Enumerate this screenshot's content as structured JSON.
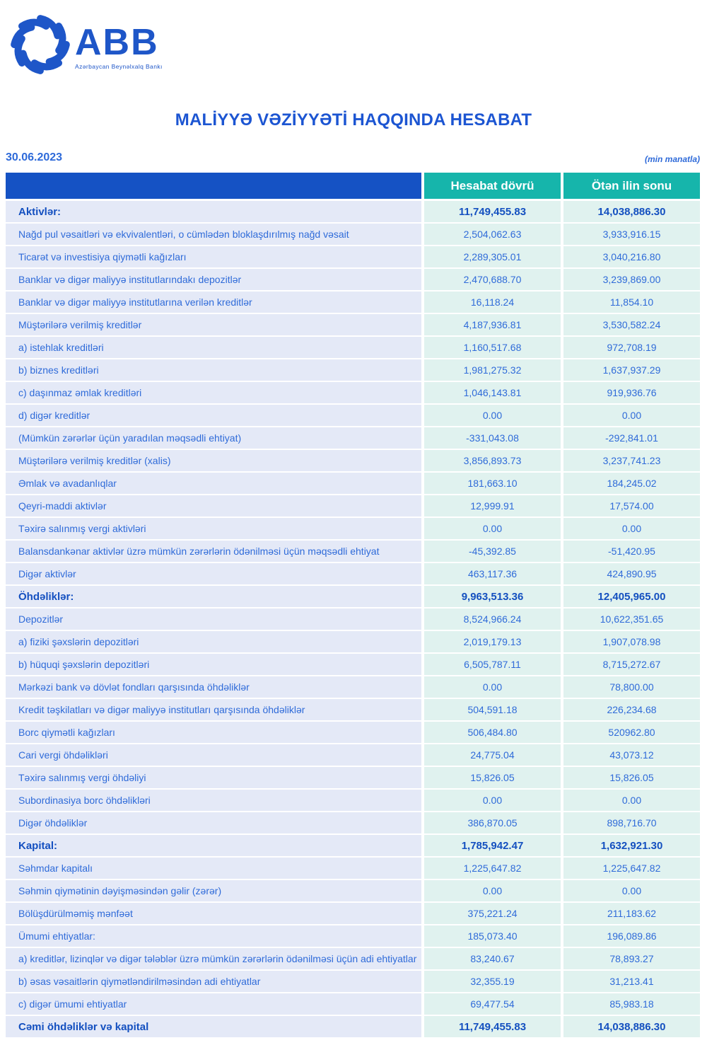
{
  "brand": {
    "name": "ABB",
    "subtitle": "Azərbaycan Beynəlxalq Bankı",
    "logo_icon": "swirl-pinwheel-icon",
    "brand_color": "#1E56C8"
  },
  "title": "MALİYYƏ VƏZİYYƏTİ HAQQINDA HESABAT",
  "date": "30.06.2023",
  "units_note": "(min manatla)",
  "colors": {
    "header_blue": "#1552C4",
    "header_teal": "#16B5AB",
    "label_cell_bg": "#E4E9F7",
    "value_cell_bg": "#E0F2EF",
    "text_blue": "#2F6BD9",
    "bold_text_blue": "#1450C0"
  },
  "table": {
    "col1": "Hesabat dövrü",
    "col2": "Ötən ilin sonu",
    "rows": [
      {
        "label": "Aktivlər:",
        "current": "11,749,455.83",
        "previous": "14,038,886.30",
        "bold": true
      },
      {
        "label": "Nağd pul vəsaitləri və  ekvivalentləri, o cümlədən bloklaşdırılmış nağd vəsait",
        "current": "2,504,062.63",
        "previous": "3,933,916.15",
        "bold": false
      },
      {
        "label": "Ticarət və investisiya qiymətli kağızları",
        "current": "2,289,305.01",
        "previous": "3,040,216.80",
        "bold": false
      },
      {
        "label": "Banklar və digər maliyyə institutlarındakı depozitlər",
        "current": "2,470,688.70",
        "previous": "3,239,869.00",
        "bold": false
      },
      {
        "label": "Banklar və digər maliyyə institutlarına verilən kreditlər",
        "current": "16,118.24",
        "previous": "11,854.10",
        "bold": false
      },
      {
        "label": "Müştərilərə verilmiş kreditlər",
        "current": "4,187,936.81",
        "previous": "3,530,582.24",
        "bold": false
      },
      {
        "label": "a) istehlak kreditləri",
        "current": "1,160,517.68",
        "previous": "972,708.19",
        "bold": false
      },
      {
        "label": "b) biznes kreditləri",
        "current": "1,981,275.32",
        "previous": "1,637,937.29",
        "bold": false
      },
      {
        "label": "c) daşınmaz əmlak kreditləri",
        "current": "1,046,143.81",
        "previous": "919,936.76",
        "bold": false
      },
      {
        "label": "d) digər kreditlər",
        "current": "0.00",
        "previous": "0.00",
        "bold": false
      },
      {
        "label": "(Mümkün zərərlər üçün yaradılan məqsədli ehtiyat)",
        "current": "-331,043.08",
        "previous": "-292,841.01",
        "bold": false
      },
      {
        "label": "Müştərilərə verilmiş kreditlər (xalis)",
        "current": "3,856,893.73",
        "previous": "3,237,741.23",
        "bold": false
      },
      {
        "label": "Əmlak və avadanlıqlar",
        "current": "181,663.10",
        "previous": "184,245.02",
        "bold": false
      },
      {
        "label": "Qeyri-maddi aktivlər",
        "current": "12,999.91",
        "previous": "17,574.00",
        "bold": false
      },
      {
        "label": "Təxirə salınmış vergi aktivləri",
        "current": "0.00",
        "previous": "0.00",
        "bold": false
      },
      {
        "label": "Balansdankənar aktivlər üzrə mümkün zərərlərin ödənilməsi üçün məqsədli ehtiyat",
        "current": "-45,392.85",
        "previous": "-51,420.95",
        "bold": false
      },
      {
        "label": "Digər aktivlər",
        "current": "463,117.36",
        "previous": "424,890.95",
        "bold": false
      },
      {
        "label": "Öhdəliklər:",
        "current": "9,963,513.36",
        "previous": "12,405,965.00",
        "bold": true
      },
      {
        "label": "Depozitlər",
        "current": "8,524,966.24",
        "previous": "10,622,351.65",
        "bold": false
      },
      {
        "label": "a) fiziki şəxslərin depozitləri",
        "current": "2,019,179.13",
        "previous": "1,907,078.98",
        "bold": false
      },
      {
        "label": "b) hüquqi şəxslərin depozitləri",
        "current": "6,505,787.11",
        "previous": "8,715,272.67",
        "bold": false
      },
      {
        "label": "Mərkəzi bank və dövlət fondları qarşısında öhdəliklər",
        "current": "0.00",
        "previous": "78,800.00",
        "bold": false
      },
      {
        "label": "Kredit təşkilatları və digər maliyyə institutları qarşısında öhdəliklər",
        "current": "504,591.18",
        "previous": "226,234.68",
        "bold": false
      },
      {
        "label": "Borc qiymətli kağızları",
        "current": "506,484.80",
        "previous": "520962.80",
        "bold": false
      },
      {
        "label": "Cari vergi öhdəlikləri",
        "current": "24,775.04",
        "previous": "43,073.12",
        "bold": false
      },
      {
        "label": "Təxirə salınmış vergi öhdəliyi",
        "current": "15,826.05",
        "previous": "15,826.05",
        "bold": false
      },
      {
        "label": "Subordinasiya borc öhdəlikləri",
        "current": "0.00",
        "previous": "0.00",
        "bold": false
      },
      {
        "label": "Digər öhdəliklər",
        "current": "386,870.05",
        "previous": "898,716.70",
        "bold": false
      },
      {
        "label": "Kapital:",
        "current": "1,785,942.47",
        "previous": "1,632,921.30",
        "bold": true
      },
      {
        "label": "Səhmdar kapitalı",
        "current": "1,225,647.82",
        "previous": "1,225,647.82",
        "bold": false
      },
      {
        "label": "Səhmin qiymətinin dəyişməsindən gəlir (zərər)",
        "current": "0.00",
        "previous": "0.00",
        "bold": false
      },
      {
        "label": "Bölüşdürülməmiş mənfəət",
        "current": "375,221.24",
        "previous": "211,183.62",
        "bold": false
      },
      {
        "label": "Ümumi ehtiyatlar:",
        "current": "185,073.40",
        "previous": "196,089.86",
        "bold": false
      },
      {
        "label": "a) kreditlər, lizinqlər və digər tələblər üzrə mümkün zərərlərin ödənilməsi üçün adi ehtiyatlar",
        "current": "83,240.67",
        "previous": "78,893.27",
        "bold": false
      },
      {
        "label": "b) əsas vəsaitlərin qiymətləndirilməsindən adi ehtiyatlar",
        "current": "32,355.19",
        "previous": "31,213.41",
        "bold": false
      },
      {
        "label": "c) digər ümumi ehtiyatlar",
        "current": "69,477.54",
        "previous": "85,983.18",
        "bold": false
      },
      {
        "label": "Cəmi öhdəliklər və kapital",
        "current": "11,749,455.83",
        "previous": "14,038,886.30",
        "bold": true
      }
    ]
  }
}
